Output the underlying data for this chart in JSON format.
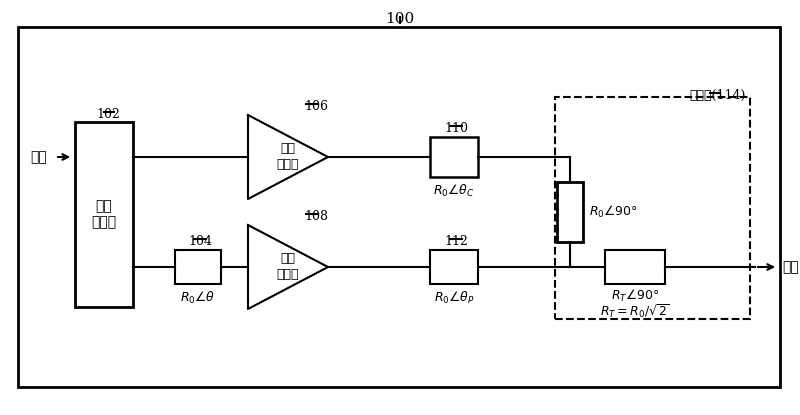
{
  "title": "100",
  "background_color": "#ffffff",
  "label_input": "输入",
  "label_output": "输出",
  "label_power_dist_line1": "功率",
  "label_power_dist_line2": "分配器",
  "label_carrier_line1": "载波",
  "label_carrier_line2": "放大器",
  "label_peak_line1": "峰化",
  "label_peak_line2": "放大器",
  "label_combiner": "组合器(114)",
  "num_100": "100",
  "num_102": "102",
  "num_104": "104",
  "num_106": "106",
  "num_108": "108",
  "num_110": "110",
  "num_112": "112"
}
